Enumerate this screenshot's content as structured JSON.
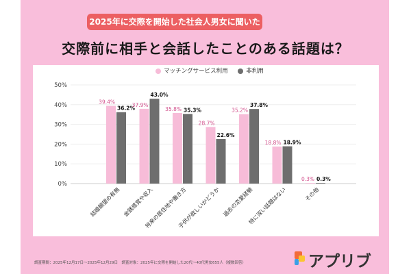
{
  "header": {
    "badge": "2025年に交際を開始した社会人男女に聞いた",
    "title": "交際前に相手と会話したことのある話題は？"
  },
  "footer": {
    "note": "調査期間：2025年12月17日〜2025年12月29日　調査対象：2025年に交際を開始した20代〜40代男女655人（複数回答）",
    "logo": "アプリブ"
  },
  "colors": {
    "background": "#f9bedb",
    "badge": "#ec5f62",
    "pink_series": "#f7bcd8",
    "gray_series": "#6e6e6e",
    "pink_label": "#d2508c"
  },
  "chart_data": {
    "type": "bar",
    "categories": [
      "結婚願望の有無",
      "金銭感覚や収入",
      "将来の居住地や働き方",
      "子供が欲しいかどうか",
      "過去の恋愛経験",
      "特に深い話題はない",
      "その他"
    ],
    "series": [
      {
        "name": "マッチングサービス利用",
        "values": [
          39.4,
          37.9,
          35.8,
          28.7,
          35.2,
          18.8,
          0.3
        ],
        "labels": [
          "39.4%",
          "37.9%",
          "35.8%",
          "28.7%",
          "35.2%",
          "18.8%",
          "0.3%"
        ]
      },
      {
        "name": "非利用",
        "values": [
          36.2,
          43.0,
          35.3,
          22.6,
          37.8,
          18.9,
          0.3
        ],
        "labels": [
          "36.2%",
          "43.0%",
          "35.3%",
          "22.6%",
          "37.8%",
          "18.9%",
          "0.3%"
        ]
      }
    ],
    "yticks": [
      "0%",
      "10%",
      "20%",
      "30%",
      "40%",
      "50%"
    ],
    "ylim": [
      0,
      50
    ],
    "grid": true,
    "legend": "top-center"
  }
}
